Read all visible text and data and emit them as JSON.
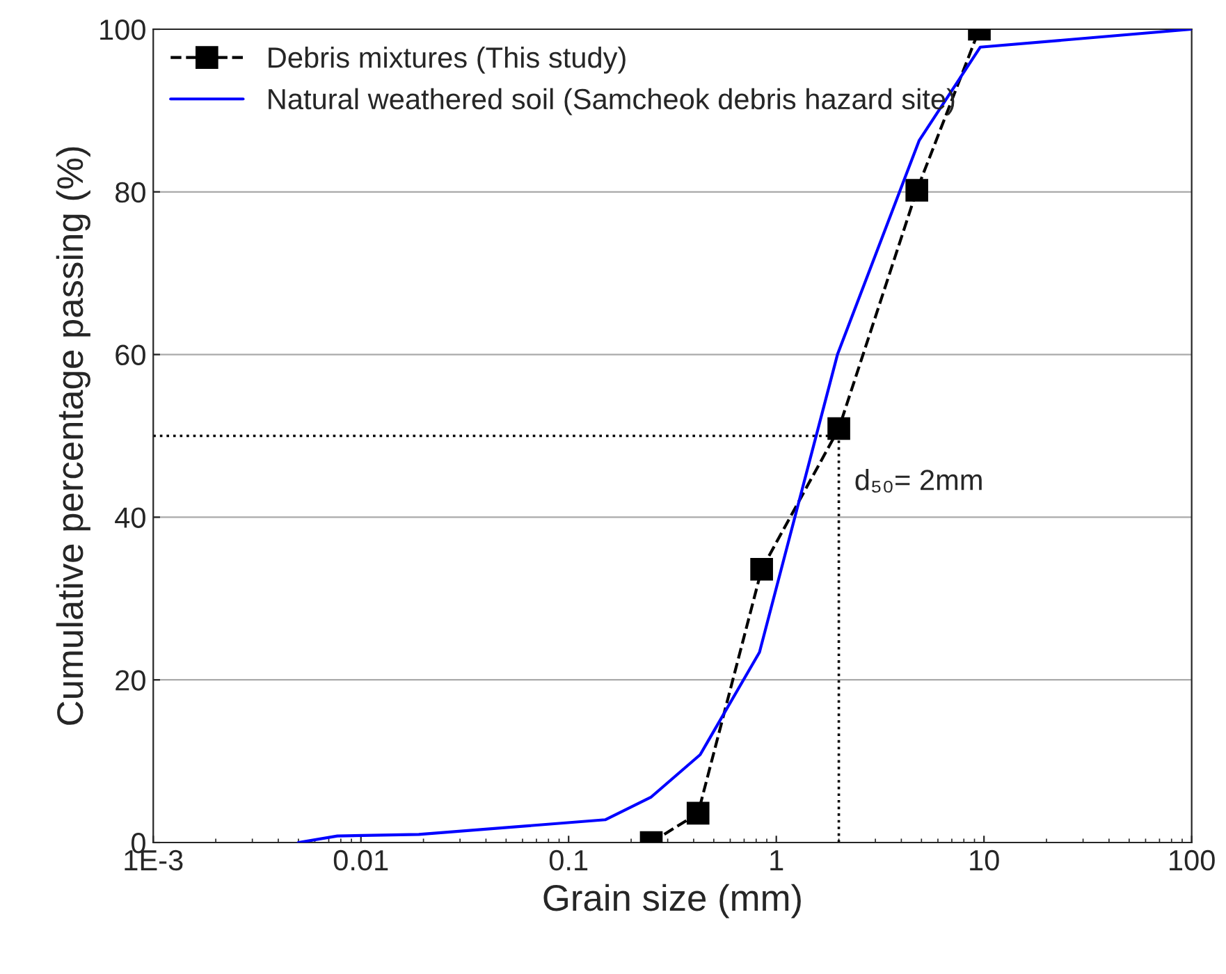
{
  "chart_data": {
    "type": "line",
    "xlabel": "Grain size (mm)",
    "ylabel": "Cumulative percentage passing (%)",
    "log": "x",
    "grid": "y",
    "legend": "top left",
    "xlim": [
      0.001,
      100
    ],
    "xticks": [
      {
        "value": 0.001,
        "label": "1E-3"
      },
      0.01,
      0.1,
      1,
      10,
      100
    ],
    "ylim": [
      0,
      100
    ],
    "yticks": [
      0,
      20,
      40,
      60,
      80,
      100
    ],
    "series": [
      {
        "name": "Debris mixtures (This study)",
        "color": "#000000",
        "marker": "square",
        "line_style": "dashed",
        "x": [
          0.25,
          0.42,
          0.85,
          2,
          4.75,
          9.5
        ],
        "values": [
          0,
          3.6,
          33.6,
          50.9,
          80.2,
          100
        ]
      },
      {
        "name": "Natural weathered soil (Samcheok debris hazard site)",
        "color": "#0000ff",
        "marker": "none",
        "line_style": "solid",
        "x": [
          0.005,
          0.0077,
          0.019,
          0.15,
          0.25,
          0.43,
          0.83,
          1.97,
          4.87,
          9.6,
          100
        ],
        "values": [
          0,
          0.8,
          1,
          2.8,
          5.6,
          10.8,
          23.4,
          60,
          86.3,
          97.8,
          100
        ]
      }
    ],
    "ref_lines": [
      {
        "axis": "y",
        "value": 50,
        "color": "#000000",
        "line_style": "dotted"
      },
      {
        "axis": "x",
        "value": 2,
        "color": "#000000",
        "line_style": "dotted"
      }
    ],
    "annotations": [
      {
        "text": "d₅₀= 2mm",
        "x": 2,
        "y": 50
      }
    ]
  }
}
